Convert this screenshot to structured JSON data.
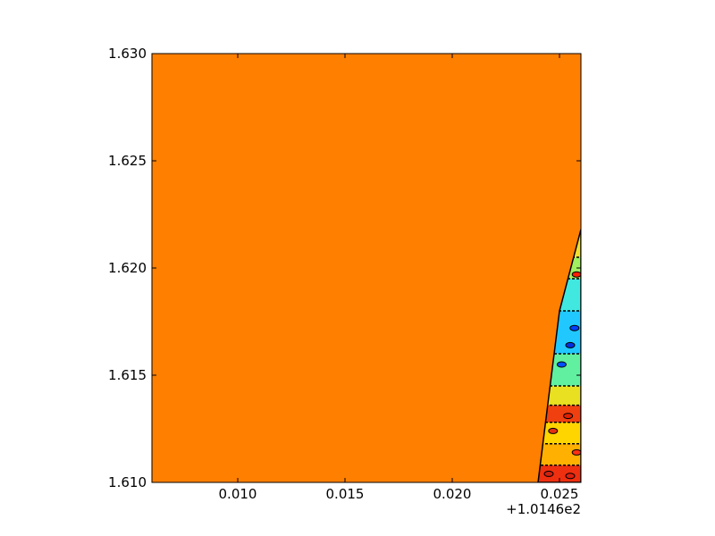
{
  "chart_data": {
    "type": "heatmap",
    "title": "",
    "xlabel": "",
    "ylabel": "",
    "x_offset_label": "+1.0146e2",
    "xlim": [
      0.006,
      0.026
    ],
    "ylim": [
      1.61,
      1.63
    ],
    "x_ticks": [
      {
        "value": 0.01,
        "label": "0.010"
      },
      {
        "value": 0.015,
        "label": "0.015"
      },
      {
        "value": 0.02,
        "label": "0.020"
      },
      {
        "value": 0.025,
        "label": "0.025"
      }
    ],
    "y_ticks": [
      {
        "value": 1.61,
        "label": "1.610"
      },
      {
        "value": 1.615,
        "label": "1.615"
      },
      {
        "value": 1.62,
        "label": "1.620"
      },
      {
        "value": 1.625,
        "label": "1.625"
      },
      {
        "value": 1.63,
        "label": "1.630"
      }
    ],
    "background_fill_color": "#ff7f00",
    "colormap": "jet",
    "contour_color": "#000000",
    "data_region": {
      "description_polygon": [
        [
          0.024,
          1.61
        ],
        [
          0.026,
          1.61
        ],
        [
          0.026,
          1.6218
        ],
        [
          0.025,
          1.618
        ]
      ],
      "bands": [
        {
          "y_from": 1.61,
          "y_to": 1.6108,
          "color": "#ee3010"
        },
        {
          "y_from": 1.6108,
          "y_to": 1.6118,
          "color": "#ffb000"
        },
        {
          "y_from": 1.6118,
          "y_to": 1.6128,
          "color": "#ffd500"
        },
        {
          "y_from": 1.6128,
          "y_to": 1.6136,
          "color": "#f04010"
        },
        {
          "y_from": 1.6136,
          "y_to": 1.6145,
          "color": "#e8e020"
        },
        {
          "y_from": 1.6145,
          "y_to": 1.616,
          "color": "#60f0a0"
        },
        {
          "y_from": 1.616,
          "y_to": 1.618,
          "color": "#20c8ff"
        },
        {
          "y_from": 1.618,
          "y_to": 1.6195,
          "color": "#40e8e0"
        },
        {
          "y_from": 1.6195,
          "y_to": 1.6205,
          "color": "#a0f060"
        },
        {
          "y_from": 1.6205,
          "y_to": 1.6218,
          "color": "#f0e030"
        }
      ],
      "spots": [
        {
          "x": 0.0258,
          "y": 1.6197,
          "color": "#ff2000"
        },
        {
          "x": 0.0257,
          "y": 1.6172,
          "color": "#0040ff"
        },
        {
          "x": 0.0255,
          "y": 1.6164,
          "color": "#0030e0"
        },
        {
          "x": 0.0251,
          "y": 1.6155,
          "color": "#0050ff"
        },
        {
          "x": 0.0254,
          "y": 1.6131,
          "color": "#e02000"
        },
        {
          "x": 0.0247,
          "y": 1.6124,
          "color": "#e03010"
        },
        {
          "x": 0.0258,
          "y": 1.6114,
          "color": "#ff3010"
        },
        {
          "x": 0.0245,
          "y": 1.6104,
          "color": "#d02010"
        },
        {
          "x": 0.0255,
          "y": 1.6103,
          "color": "#e02010"
        }
      ]
    }
  }
}
